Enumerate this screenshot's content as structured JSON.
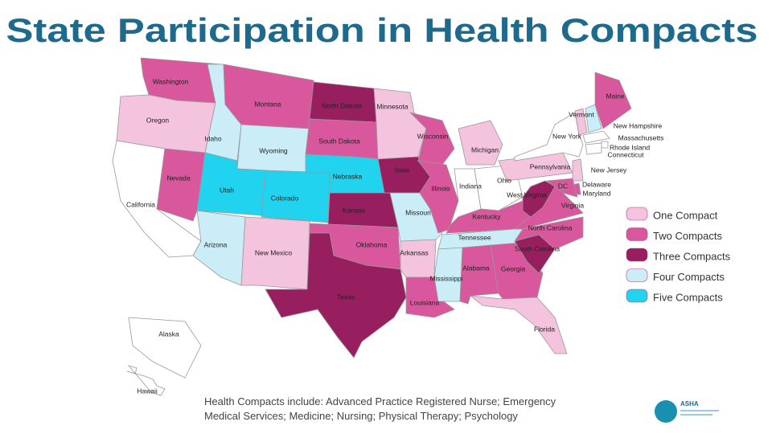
{
  "title": "State Participation in Health Compacts",
  "legend": [
    {
      "label": "One Compact",
      "color": "#f4c3de"
    },
    {
      "label": "Two Compacts",
      "color": "#d9579d"
    },
    {
      "label": "Three Compacts",
      "color": "#971f5f"
    },
    {
      "label": "Four Compacts",
      "color": "#caedf8"
    },
    {
      "label": "Five Compacts",
      "color": "#22d3ef"
    }
  ],
  "states": [
    {
      "name": "Washington",
      "group": "Two Compacts"
    },
    {
      "name": "Oregon",
      "group": "One Compact"
    },
    {
      "name": "California"
    },
    {
      "name": "Nevada",
      "group": "Two Compacts"
    },
    {
      "name": "Idaho",
      "group": "Four Compacts"
    },
    {
      "name": "Montana",
      "group": "Two Compacts"
    },
    {
      "name": "Wyoming",
      "group": "Four Compacts"
    },
    {
      "name": "Utah",
      "group": "Five Compacts"
    },
    {
      "name": "Colorado",
      "group": "Five Compacts"
    },
    {
      "name": "Arizona",
      "group": "Four Compacts"
    },
    {
      "name": "New Mexico",
      "group": "One Compact"
    },
    {
      "name": "North Dakota",
      "group": "Three Compacts"
    },
    {
      "name": "South Dakota",
      "group": "Two Compacts"
    },
    {
      "name": "Nebraska",
      "group": "Five Compacts"
    },
    {
      "name": "Kansas",
      "group": "Three Compacts"
    },
    {
      "name": "Oklahoma",
      "group": "Two Compacts"
    },
    {
      "name": "Texas",
      "group": "Three Compacts"
    },
    {
      "name": "Minnesota",
      "group": "One Compact"
    },
    {
      "name": "Iowa",
      "group": "Three Compacts"
    },
    {
      "name": "Missouri",
      "group": "Four Compacts"
    },
    {
      "name": "Arkansas",
      "group": "One Compact"
    },
    {
      "name": "Louisiana",
      "group": "Two Compacts"
    },
    {
      "name": "Wisconsin",
      "group": "Two Compacts"
    },
    {
      "name": "Illinois",
      "group": "Two Compacts"
    },
    {
      "name": "Michigan",
      "group": "One Compact"
    },
    {
      "name": "Indiana"
    },
    {
      "name": "Ohio"
    },
    {
      "name": "Kentucky",
      "group": "Two Compacts"
    },
    {
      "name": "Tennessee",
      "group": "Four Compacts"
    },
    {
      "name": "Mississippi",
      "group": "Four Compacts"
    },
    {
      "name": "Alabama",
      "group": "Two Compacts"
    },
    {
      "name": "Georgia",
      "group": "Two Compacts"
    },
    {
      "name": "Florida",
      "group": "One Compact"
    },
    {
      "name": "South Carolina",
      "group": "Three Compacts"
    },
    {
      "name": "North Carolina",
      "group": "Two Compacts"
    },
    {
      "name": "Virginia",
      "group": "Two Compacts"
    },
    {
      "name": "West Virginia",
      "group": "Three Compacts"
    },
    {
      "name": "Pennsylvania",
      "group": "One Compact"
    },
    {
      "name": "New York"
    },
    {
      "name": "Vermont",
      "group": "One Compact"
    },
    {
      "name": "New Hampshire",
      "group": "Four Compacts"
    },
    {
      "name": "Maine",
      "group": "Two Compacts"
    },
    {
      "name": "Massachusetts"
    },
    {
      "name": "Rhode Island"
    },
    {
      "name": "Connecticut"
    },
    {
      "name": "New Jersey",
      "group": "One Compact"
    },
    {
      "name": "Delaware",
      "group": "Two Compacts"
    },
    {
      "name": "Maryland",
      "group": "Two Compacts"
    },
    {
      "name": "DC",
      "group": "Two Compacts"
    },
    {
      "name": "Alaska"
    },
    {
      "name": "Hawaii"
    }
  ],
  "footnote": [
    "Health Compacts include: Advanced Practice Registered Nurse; Emergency",
    "Medical Services; Medicine; Nursing; Physical Therapy; Psychology"
  ],
  "logo": "ASHA"
}
